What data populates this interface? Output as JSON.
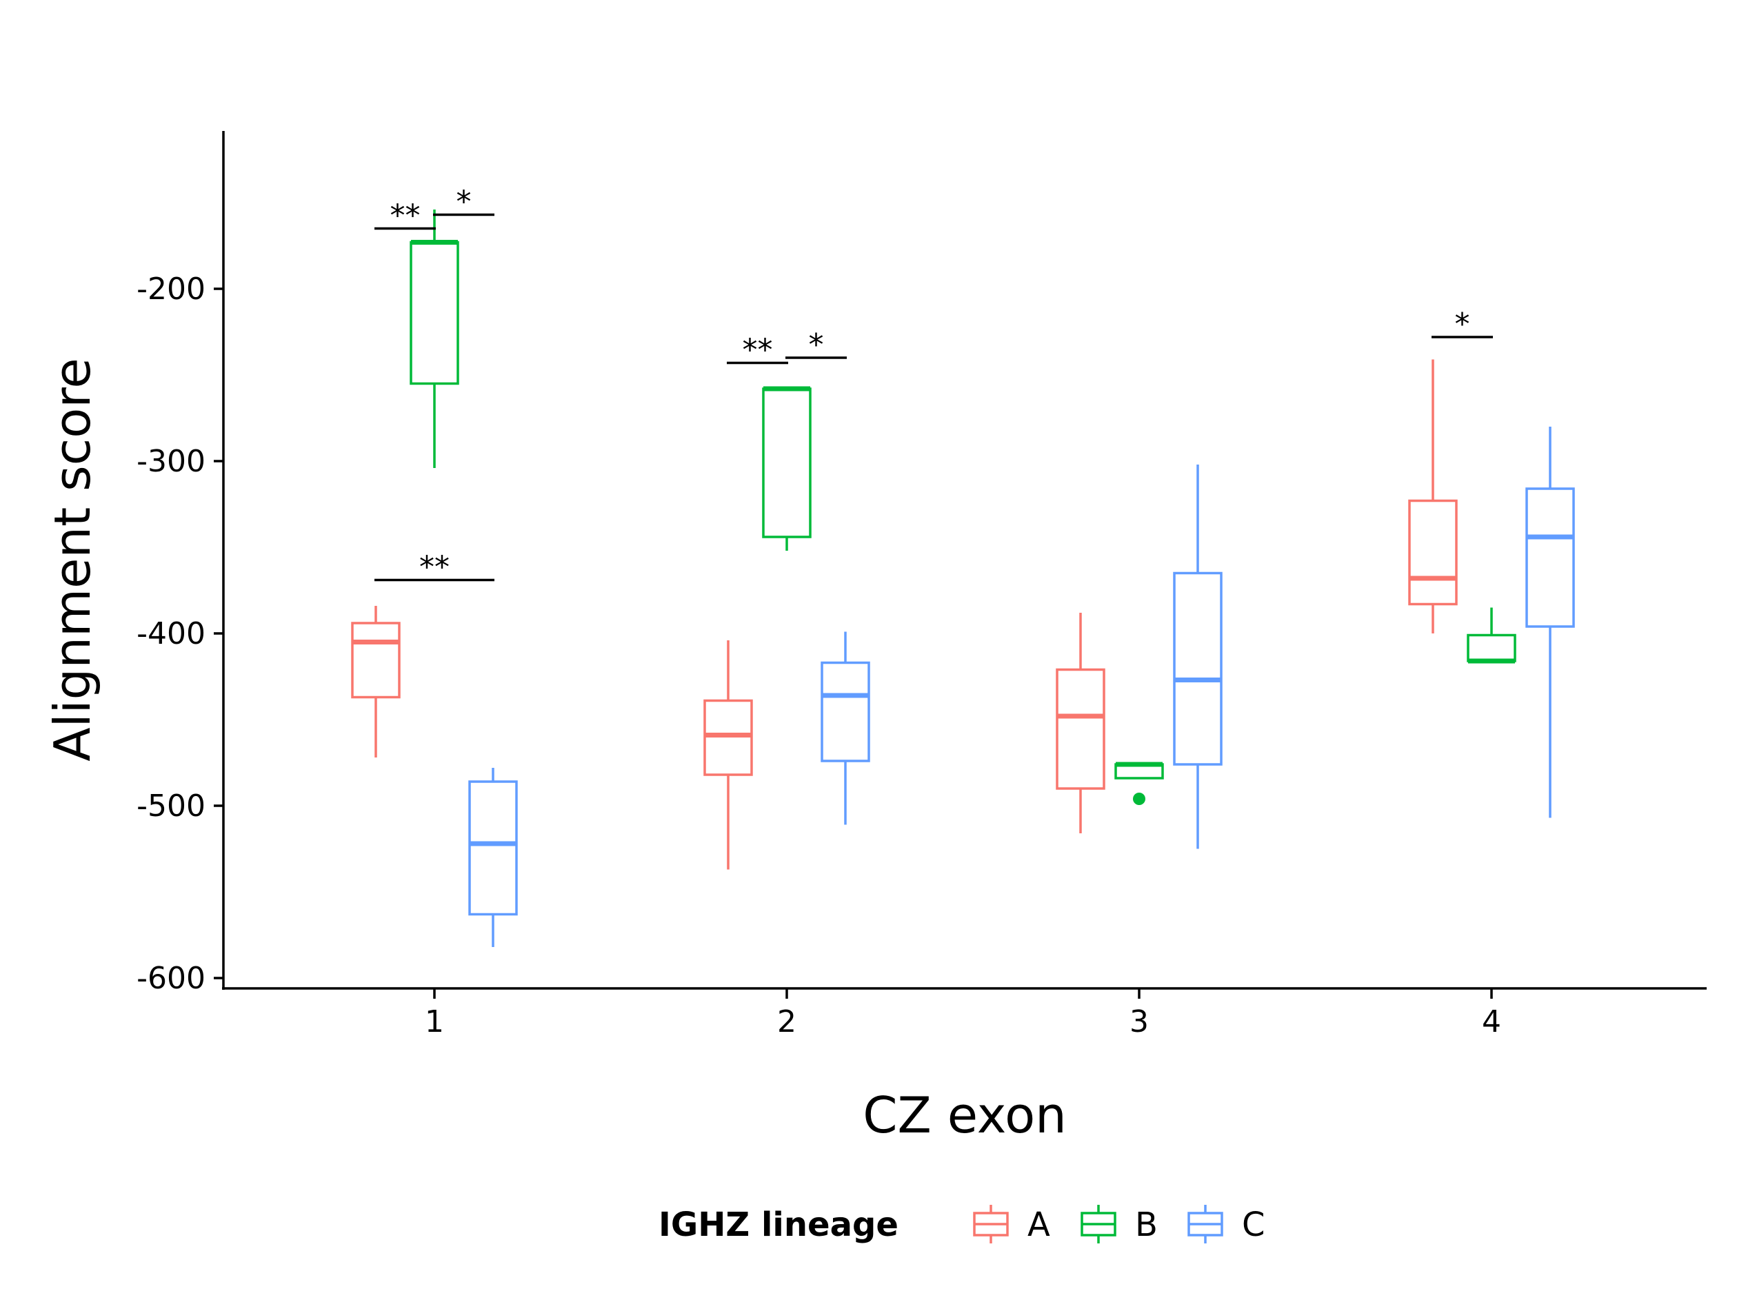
{
  "chart_data": {
    "type": "box",
    "xlabel": "CZ exon",
    "ylabel": "Alignment score",
    "categories": [
      "1",
      "2",
      "3",
      "4"
    ],
    "ylim": [
      -615,
      -140
    ],
    "yticks": [
      -200,
      -300,
      -400,
      -500,
      -600
    ],
    "ytick_labels": [
      "-200",
      "-300",
      "-400",
      "-500",
      "-600"
    ],
    "grid": false,
    "legend": {
      "title": "IGHZ lineage",
      "position": "bottom"
    },
    "series": [
      {
        "name": "A",
        "color": "#F8766D",
        "boxes": [
          {
            "category": "1",
            "whisker_low": -472,
            "q1": -437,
            "median": -405,
            "q3": -394,
            "whisker_high": -384,
            "outliers": []
          },
          {
            "category": "2",
            "whisker_low": -537,
            "q1": -482,
            "median": -459,
            "q3": -439,
            "whisker_high": -404,
            "outliers": []
          },
          {
            "category": "3",
            "whisker_low": -516,
            "q1": -490,
            "median": -448,
            "q3": -421,
            "whisker_high": -388,
            "outliers": []
          },
          {
            "category": "4",
            "whisker_low": -400,
            "q1": -383,
            "median": -368,
            "q3": -323,
            "whisker_high": -241,
            "outliers": []
          }
        ]
      },
      {
        "name": "B",
        "color": "#00BA38",
        "boxes": [
          {
            "category": "1",
            "whisker_low": -304,
            "q1": -255,
            "median": -173,
            "q3": -173,
            "whisker_high": -154,
            "outliers": []
          },
          {
            "category": "2",
            "whisker_low": -352,
            "q1": -344,
            "median": -258,
            "q3": -258,
            "whisker_high": -258,
            "outliers": []
          },
          {
            "category": "3",
            "whisker_low": -484,
            "q1": -484,
            "median": -476,
            "q3": -476,
            "whisker_high": -476,
            "outliers": [
              -496
            ]
          },
          {
            "category": "4",
            "whisker_low": -416,
            "q1": -416,
            "median": -416,
            "q3": -401,
            "whisker_high": -385,
            "outliers": []
          }
        ]
      },
      {
        "name": "C",
        "color": "#619CFF",
        "boxes": [
          {
            "category": "1",
            "whisker_low": -582,
            "q1": -563,
            "median": -522,
            "q3": -486,
            "whisker_high": -478,
            "outliers": []
          },
          {
            "category": "2",
            "whisker_low": -511,
            "q1": -474,
            "median": -436,
            "q3": -417,
            "whisker_high": -399,
            "outliers": []
          },
          {
            "category": "3",
            "whisker_low": -525,
            "q1": -476,
            "median": -427,
            "q3": -365,
            "whisker_high": -302,
            "outliers": []
          },
          {
            "category": "4",
            "whisker_low": -507,
            "q1": -396,
            "median": -344,
            "q3": -316,
            "whisker_high": -280,
            "outliers": []
          }
        ]
      }
    ],
    "significance": [
      {
        "category": "1",
        "from": "A",
        "to": "B",
        "y": -165,
        "label": "**"
      },
      {
        "category": "1",
        "from": "B",
        "to": "C",
        "y": -157,
        "label": "*"
      },
      {
        "category": "1",
        "from": "A",
        "to": "C",
        "y": -369,
        "label": "**"
      },
      {
        "category": "2",
        "from": "A",
        "to": "B",
        "y": -243,
        "label": "**"
      },
      {
        "category": "2",
        "from": "B",
        "to": "C",
        "y": -240,
        "label": "*"
      },
      {
        "category": "4",
        "from": "A",
        "to": "B",
        "y": -228,
        "label": "*"
      }
    ]
  }
}
